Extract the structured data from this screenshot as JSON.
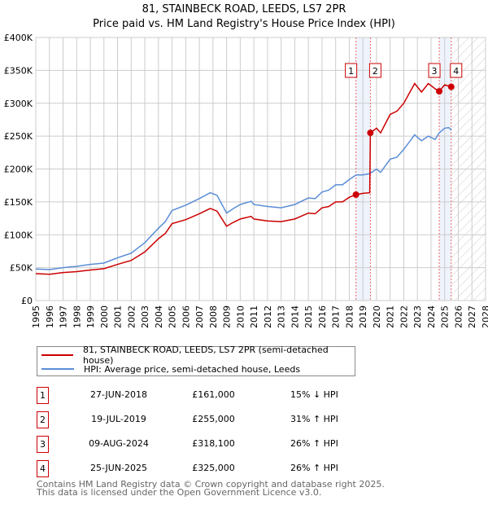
{
  "chart_data": {
    "type": "line",
    "title": "81, STAINBECK ROAD, LEEDS, LS7 2PR",
    "subtitle": "Price paid vs. HM Land Registry's House Price Index (HPI)",
    "xlim": [
      1995,
      2028
    ],
    "ylim": [
      0,
      400000
    ],
    "x_ticks": [
      "1995",
      "1996",
      "1997",
      "1998",
      "1999",
      "2000",
      "2001",
      "2002",
      "2003",
      "2004",
      "2005",
      "2006",
      "2007",
      "2008",
      "2009",
      "2010",
      "2011",
      "2012",
      "2013",
      "2014",
      "2015",
      "2016",
      "2017",
      "2018",
      "2019",
      "2020",
      "2021",
      "2022",
      "2023",
      "2024",
      "2025",
      "2026",
      "2027",
      "2028"
    ],
    "y_ticks": [
      {
        "v": 0,
        "l": "£0"
      },
      {
        "v": 50000,
        "l": "£50K"
      },
      {
        "v": 100000,
        "l": "£100K"
      },
      {
        "v": 150000,
        "l": "£150K"
      },
      {
        "v": 200000,
        "l": "£200K"
      },
      {
        "v": 250000,
        "l": "£250K"
      },
      {
        "v": 300000,
        "l": "£300K"
      },
      {
        "v": 350000,
        "l": "£350K"
      },
      {
        "v": 400000,
        "l": "£400K"
      }
    ],
    "grid": true,
    "series": [
      {
        "name": "81, STAINBECK ROAD, LEEDS, LS7 2PR (semi-detached house)",
        "color": "#cc0000",
        "x": [
          1995,
          1996,
          1997,
          1998,
          1999,
          2000,
          2001,
          2002,
          2003,
          2004,
          2004.5,
          2005,
          2006,
          2007,
          2007.8,
          2008.3,
          2009,
          2009.5,
          2010,
          2010.8,
          2011,
          2012,
          2013,
          2014,
          2015,
          2015.5,
          2016,
          2016.5,
          2017,
          2017.5,
          2018,
          2018.49,
          2019,
          2019.5,
          2019.55,
          2020,
          2020.3,
          2021,
          2021.5,
          2022,
          2022.8,
          2023.3,
          2023.8,
          2024.3,
          2024.6,
          2025,
          2025.48
        ],
        "y": [
          41000,
          40000,
          42500,
          44000,
          46500,
          48500,
          55000,
          61000,
          74000,
          94000,
          102000,
          117000,
          123000,
          132000,
          140000,
          136000,
          113000,
          119000,
          124000,
          128000,
          124000,
          121000,
          120000,
          124000,
          133000,
          132000,
          141000,
          143000,
          150000,
          150000,
          157000,
          161000,
          163000,
          164000,
          255000,
          262000,
          255000,
          283000,
          288000,
          300000,
          330000,
          317000,
          330000,
          322000,
          318100,
          328000,
          325000
        ]
      },
      {
        "name": "HPI: Average price, semi-detached house, Leeds",
        "color": "#5b8ed6",
        "x": [
          1995,
          1996,
          1997,
          1998,
          1999,
          2000,
          2001,
          2002,
          2003,
          2004,
          2004.5,
          2005,
          2006,
          2007,
          2007.8,
          2008.3,
          2009,
          2009.5,
          2010,
          2010.8,
          2011,
          2012,
          2013,
          2014,
          2015,
          2015.5,
          2016,
          2016.5,
          2017,
          2017.5,
          2018,
          2018.5,
          2019,
          2019.5,
          2020,
          2020.3,
          2021,
          2021.5,
          2022,
          2022.8,
          2023.3,
          2023.8,
          2024.3,
          2024.6,
          2025,
          2025.3,
          2025.5
        ],
        "y": [
          48000,
          47000,
          50000,
          52000,
          55000,
          57000,
          65000,
          72000,
          88000,
          110000,
          120000,
          137000,
          145000,
          155000,
          164000,
          160000,
          133000,
          140000,
          146000,
          151000,
          146000,
          143000,
          141000,
          146000,
          156000,
          155000,
          165000,
          168000,
          176000,
          176000,
          184000,
          191000,
          191000,
          193000,
          200000,
          195000,
          215000,
          218000,
          230000,
          252000,
          243000,
          250000,
          245000,
          255000,
          262000,
          263000,
          259000
        ]
      }
    ],
    "transactions": [
      {
        "id": "1",
        "date": "27-JUN-2018",
        "x": 2018.49,
        "price": "£161,000",
        "value": 161000,
        "hpi": "15% ↓ HPI"
      },
      {
        "id": "2",
        "date": "19-JUL-2019",
        "x": 2019.55,
        "price": "£255,000",
        "value": 255000,
        "hpi": "31% ↑ HPI"
      },
      {
        "id": "3",
        "date": "09-AUG-2024",
        "x": 2024.6,
        "price": "£318,100",
        "value": 318100,
        "hpi": "26% ↑ HPI"
      },
      {
        "id": "4",
        "date": "25-JUN-2025",
        "x": 2025.48,
        "price": "£325,000",
        "value": 325000,
        "hpi": "26% ↑ HPI"
      }
    ],
    "footer": [
      "Contains HM Land Registry data © Crown copyright and database right 2025.",
      "This data is licensed under the Open Government Licence v3.0."
    ]
  }
}
